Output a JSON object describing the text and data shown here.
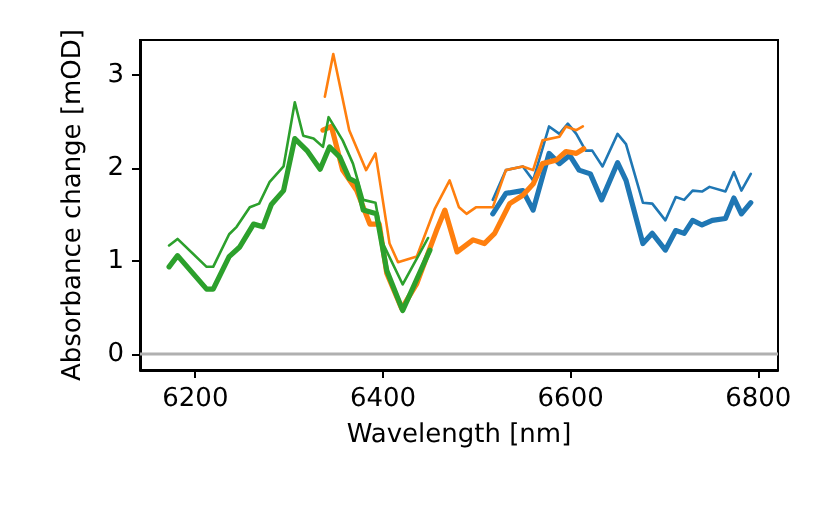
{
  "chart_data": {
    "type": "line",
    "xlabel": "Wavelength [nm]",
    "ylabel": "Absorbance change [mOD]",
    "xlim": [
      6141,
      6821
    ],
    "xticks": [
      6200,
      6400,
      6600,
      6800
    ],
    "ylim": [
      -0.17,
      3.38
    ],
    "yticks": [
      0,
      1,
      2,
      3
    ],
    "grid": false,
    "marker": "none",
    "ref_lines": [
      {
        "axis": "y",
        "value": 0,
        "color": "#b0b0b0"
      }
    ],
    "series": [
      {
        "color": "#1f77b4",
        "x": [
          6517,
          6531,
          6549,
          6560,
          6577,
          6588,
          6597,
          6606,
          6616,
          6623,
          6634,
          6650,
          6659,
          6677,
          6687,
          6701,
          6712,
          6721,
          6730,
          6740,
          6748,
          6765,
          6774,
          6782,
          6792
        ],
        "values": [
          1.66,
          1.98,
          2.02,
          1.87,
          2.45,
          2.37,
          2.48,
          2.37,
          2.19,
          2.19,
          2.02,
          2.37,
          2.26,
          1.63,
          1.62,
          1.44,
          1.69,
          1.66,
          1.76,
          1.75,
          1.8,
          1.75,
          1.96,
          1.76,
          1.94
        ]
      },
      {
        "color": "#1f77b4",
        "x": [
          6517,
          6531,
          6549,
          6560,
          6577,
          6588,
          6599,
          6609,
          6621,
          6633,
          6650,
          6659,
          6677,
          6687,
          6701,
          6712,
          6721,
          6730,
          6740,
          6751,
          6765,
          6774,
          6782,
          6792
        ],
        "values": [
          1.51,
          1.73,
          1.76,
          1.55,
          2.16,
          2.05,
          2.14,
          1.98,
          1.94,
          1.66,
          2.06,
          1.87,
          1.19,
          1.3,
          1.12,
          1.33,
          1.3,
          1.44,
          1.39,
          1.44,
          1.46,
          1.68,
          1.51,
          1.63
        ]
      },
      {
        "color": "#ff7f0e",
        "x": [
          6338,
          6347,
          6364,
          6382,
          6392,
          6407,
          6416,
          6436,
          6455,
          6471,
          6481,
          6489,
          6499,
          6517,
          6531,
          6549,
          6560,
          6570,
          6588,
          6595,
          6606,
          6613
        ],
        "values": [
          2.77,
          3.23,
          2.41,
          1.98,
          2.16,
          1.19,
          0.99,
          1.05,
          1.56,
          1.87,
          1.58,
          1.51,
          1.58,
          1.58,
          1.98,
          2.02,
          1.98,
          2.3,
          2.34,
          2.45,
          2.41,
          2.45
        ]
      },
      {
        "color": "#ff7f0e",
        "x": [
          6336,
          6345,
          6357,
          6372,
          6386,
          6396,
          6404,
          6420,
          6436,
          6457,
          6466,
          6479,
          6496,
          6508,
          6519,
          6535,
          6549,
          6560,
          6570,
          6585,
          6595,
          6606,
          6614
        ],
        "values": [
          2.41,
          2.45,
          1.98,
          1.76,
          1.4,
          1.4,
          0.87,
          0.49,
          0.76,
          1.33,
          1.55,
          1.1,
          1.23,
          1.19,
          1.3,
          1.62,
          1.71,
          1.83,
          2.05,
          2.09,
          2.18,
          2.16,
          2.21
        ]
      },
      {
        "color": "#2ca02c",
        "x": [
          6172,
          6181,
          6212,
          6219,
          6236,
          6244,
          6258,
          6268,
          6279,
          6294,
          6306,
          6315,
          6326,
          6336,
          6342,
          6357,
          6368,
          6379,
          6392,
          6400,
          6421,
          6448
        ],
        "values": [
          1.17,
          1.24,
          0.94,
          0.94,
          1.29,
          1.37,
          1.58,
          1.62,
          1.85,
          2.02,
          2.71,
          2.35,
          2.32,
          2.23,
          2.55,
          2.3,
          2.05,
          1.66,
          1.63,
          1.19,
          0.75,
          1.25
        ]
      },
      {
        "color": "#2ca02c",
        "x": [
          6172,
          6181,
          6212,
          6219,
          6236,
          6247,
          6262,
          6272,
          6281,
          6294,
          6306,
          6319,
          6333,
          6343,
          6354,
          6364,
          6372,
          6379,
          6393,
          6404,
          6421,
          6450
        ],
        "values": [
          0.94,
          1.06,
          0.7,
          0.7,
          1.05,
          1.15,
          1.4,
          1.37,
          1.61,
          1.76,
          2.32,
          2.19,
          1.99,
          2.23,
          2.12,
          1.89,
          1.85,
          1.55,
          1.51,
          0.9,
          0.47,
          1.12
        ]
      }
    ]
  }
}
